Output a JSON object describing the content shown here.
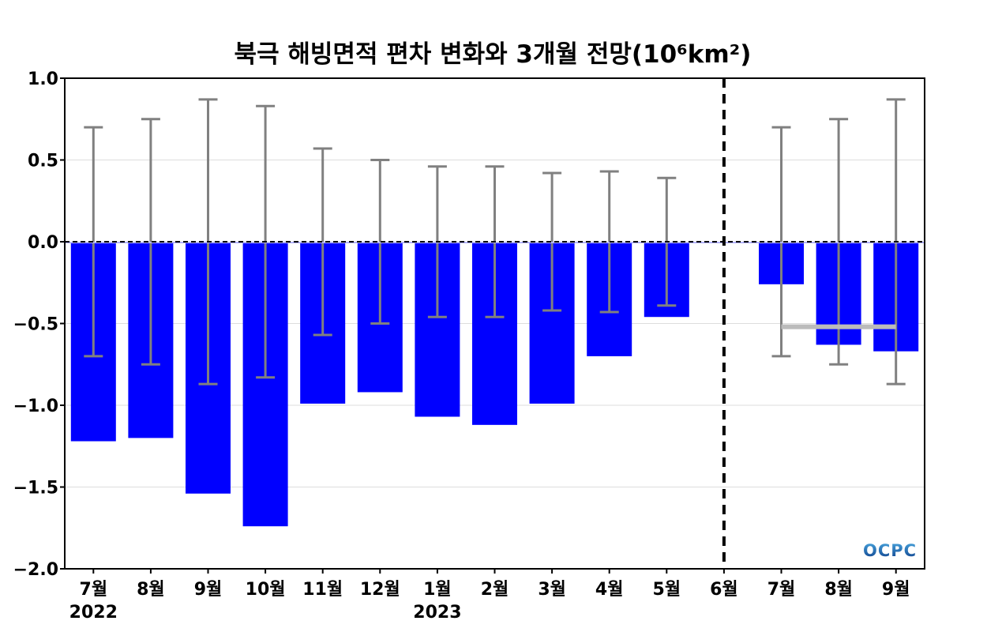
{
  "chart_data": {
    "type": "bar",
    "title": "북극 해빙면적 편차 변화와 3개월 전망(10⁶km²)",
    "xlabel": "",
    "ylabel": "",
    "ylim": [
      -2.0,
      1.0
    ],
    "yticks": [
      1.0,
      0.5,
      0.0,
      -0.5,
      -1.0,
      -1.5,
      -2.0
    ],
    "ytick_labels": [
      "1.0",
      "0.5",
      "0.0",
      "−0.5",
      "−1.0",
      "−1.5",
      "−2.0"
    ],
    "categories": [
      "7월",
      "8월",
      "9월",
      "10월",
      "11월",
      "12월",
      "1월",
      "2월",
      "3월",
      "4월",
      "5월",
      "6월",
      "7월",
      "8월",
      "9월"
    ],
    "year_labels": [
      {
        "category_index": 0,
        "label": "2022"
      },
      {
        "category_index": 6,
        "label": "2023"
      }
    ],
    "series": [
      {
        "values": [
          -1.22,
          -1.2,
          -1.54,
          -1.74,
          -0.99,
          -0.92,
          -1.07,
          -1.12,
          -0.99,
          -0.7,
          -0.46,
          0.0,
          -0.26,
          -0.63,
          -0.67
        ],
        "error": [
          0.7,
          0.75,
          0.87,
          0.83,
          0.57,
          0.5,
          0.46,
          0.46,
          0.42,
          0.43,
          0.39,
          null,
          0.7,
          0.75,
          0.87
        ],
        "color": "#0000ff"
      }
    ],
    "forecast_divider_after_index": 11,
    "forecast_mean_line": {
      "from_index": 12,
      "to_index": 14,
      "value": -0.52,
      "color": "#bbbbbb"
    },
    "errorbar_color": "#808080",
    "grid": true,
    "zero_line": "dashed"
  },
  "logo": {
    "text": "OCPC",
    "colors": [
      "#4aa8e0",
      "#0d3e8a"
    ]
  }
}
